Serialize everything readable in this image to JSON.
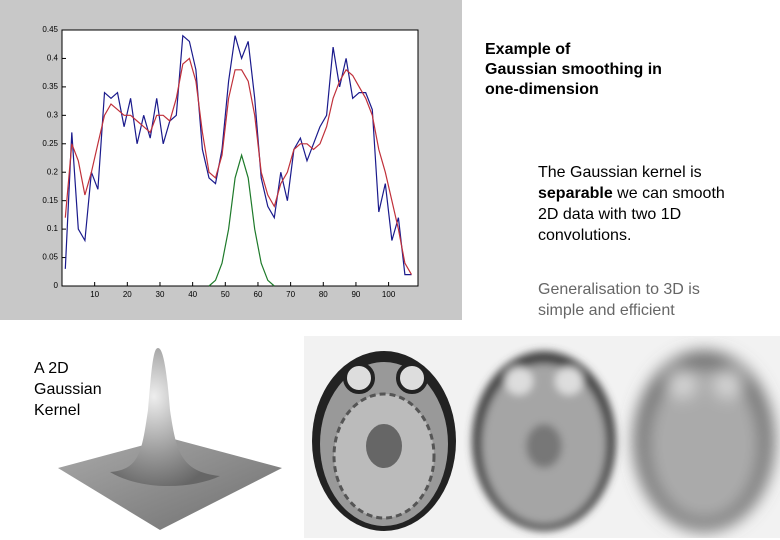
{
  "chart_data": {
    "type": "line",
    "xlim": [
      0,
      109
    ],
    "ylim": [
      0,
      0.45
    ],
    "xticks": [
      10,
      20,
      30,
      40,
      50,
      60,
      70,
      80,
      90,
      100
    ],
    "yticks": [
      0,
      0.05,
      0.1,
      0.15,
      0.2,
      0.25,
      0.3,
      0.35,
      0.4,
      0.45
    ],
    "series": [
      {
        "color": "#1a1a8c",
        "x": [
          1,
          3,
          5,
          7,
          9,
          11,
          13,
          15,
          17,
          19,
          21,
          23,
          25,
          27,
          29,
          31,
          33,
          35,
          37,
          39,
          41,
          43,
          45,
          47,
          49,
          51,
          53,
          55,
          57,
          59,
          61,
          63,
          65,
          67,
          69,
          71,
          73,
          75,
          77,
          79,
          81,
          83,
          85,
          87,
          89,
          91,
          93,
          95,
          97,
          99,
          101,
          103,
          105,
          107
        ],
        "values": [
          0.03,
          0.27,
          0.1,
          0.08,
          0.2,
          0.17,
          0.34,
          0.33,
          0.34,
          0.28,
          0.33,
          0.25,
          0.3,
          0.26,
          0.33,
          0.25,
          0.29,
          0.3,
          0.44,
          0.43,
          0.38,
          0.24,
          0.19,
          0.18,
          0.24,
          0.36,
          0.44,
          0.4,
          0.43,
          0.33,
          0.19,
          0.14,
          0.12,
          0.2,
          0.15,
          0.24,
          0.26,
          0.22,
          0.25,
          0.28,
          0.3,
          0.42,
          0.35,
          0.4,
          0.33,
          0.34,
          0.34,
          0.31,
          0.13,
          0.18,
          0.08,
          0.12,
          0.02,
          0.02
        ]
      },
      {
        "color": "#c0303a",
        "x": [
          1,
          3,
          5,
          7,
          9,
          11,
          13,
          15,
          17,
          19,
          21,
          23,
          25,
          27,
          29,
          31,
          33,
          35,
          37,
          39,
          41,
          43,
          45,
          47,
          49,
          51,
          53,
          55,
          57,
          59,
          61,
          63,
          65,
          67,
          69,
          71,
          73,
          75,
          77,
          79,
          81,
          83,
          85,
          87,
          89,
          91,
          93,
          95,
          97,
          99,
          101,
          103,
          105,
          107
        ],
        "values": [
          0.12,
          0.25,
          0.22,
          0.16,
          0.2,
          0.25,
          0.3,
          0.32,
          0.31,
          0.3,
          0.3,
          0.29,
          0.28,
          0.27,
          0.3,
          0.3,
          0.29,
          0.33,
          0.39,
          0.4,
          0.36,
          0.27,
          0.2,
          0.19,
          0.23,
          0.33,
          0.38,
          0.38,
          0.36,
          0.3,
          0.2,
          0.16,
          0.14,
          0.18,
          0.2,
          0.24,
          0.25,
          0.25,
          0.24,
          0.25,
          0.28,
          0.33,
          0.36,
          0.38,
          0.37,
          0.35,
          0.33,
          0.3,
          0.24,
          0.2,
          0.15,
          0.1,
          0.04,
          0.02
        ]
      },
      {
        "color": "#1e7a2a",
        "x": [
          45,
          47,
          49,
          51,
          53,
          55,
          57,
          59,
          61,
          63,
          65
        ],
        "values": [
          0,
          0.01,
          0.04,
          0.1,
          0.19,
          0.23,
          0.19,
          0.1,
          0.04,
          0.01,
          0
        ]
      }
    ]
  },
  "heading": [
    "Example of",
    "Gaussian smoothing in",
    "one-dimension"
  ],
  "body": {
    "lines": [
      "The Gaussian kernel is",
      "we can smooth",
      "2D data with two 1D",
      "convolutions."
    ],
    "bold": "separable"
  },
  "note": [
    "Generalisation to 3D is",
    "simple and efficient"
  ],
  "kernel_caption": [
    "A 2D",
    "Gaussian",
    "Kernel"
  ]
}
